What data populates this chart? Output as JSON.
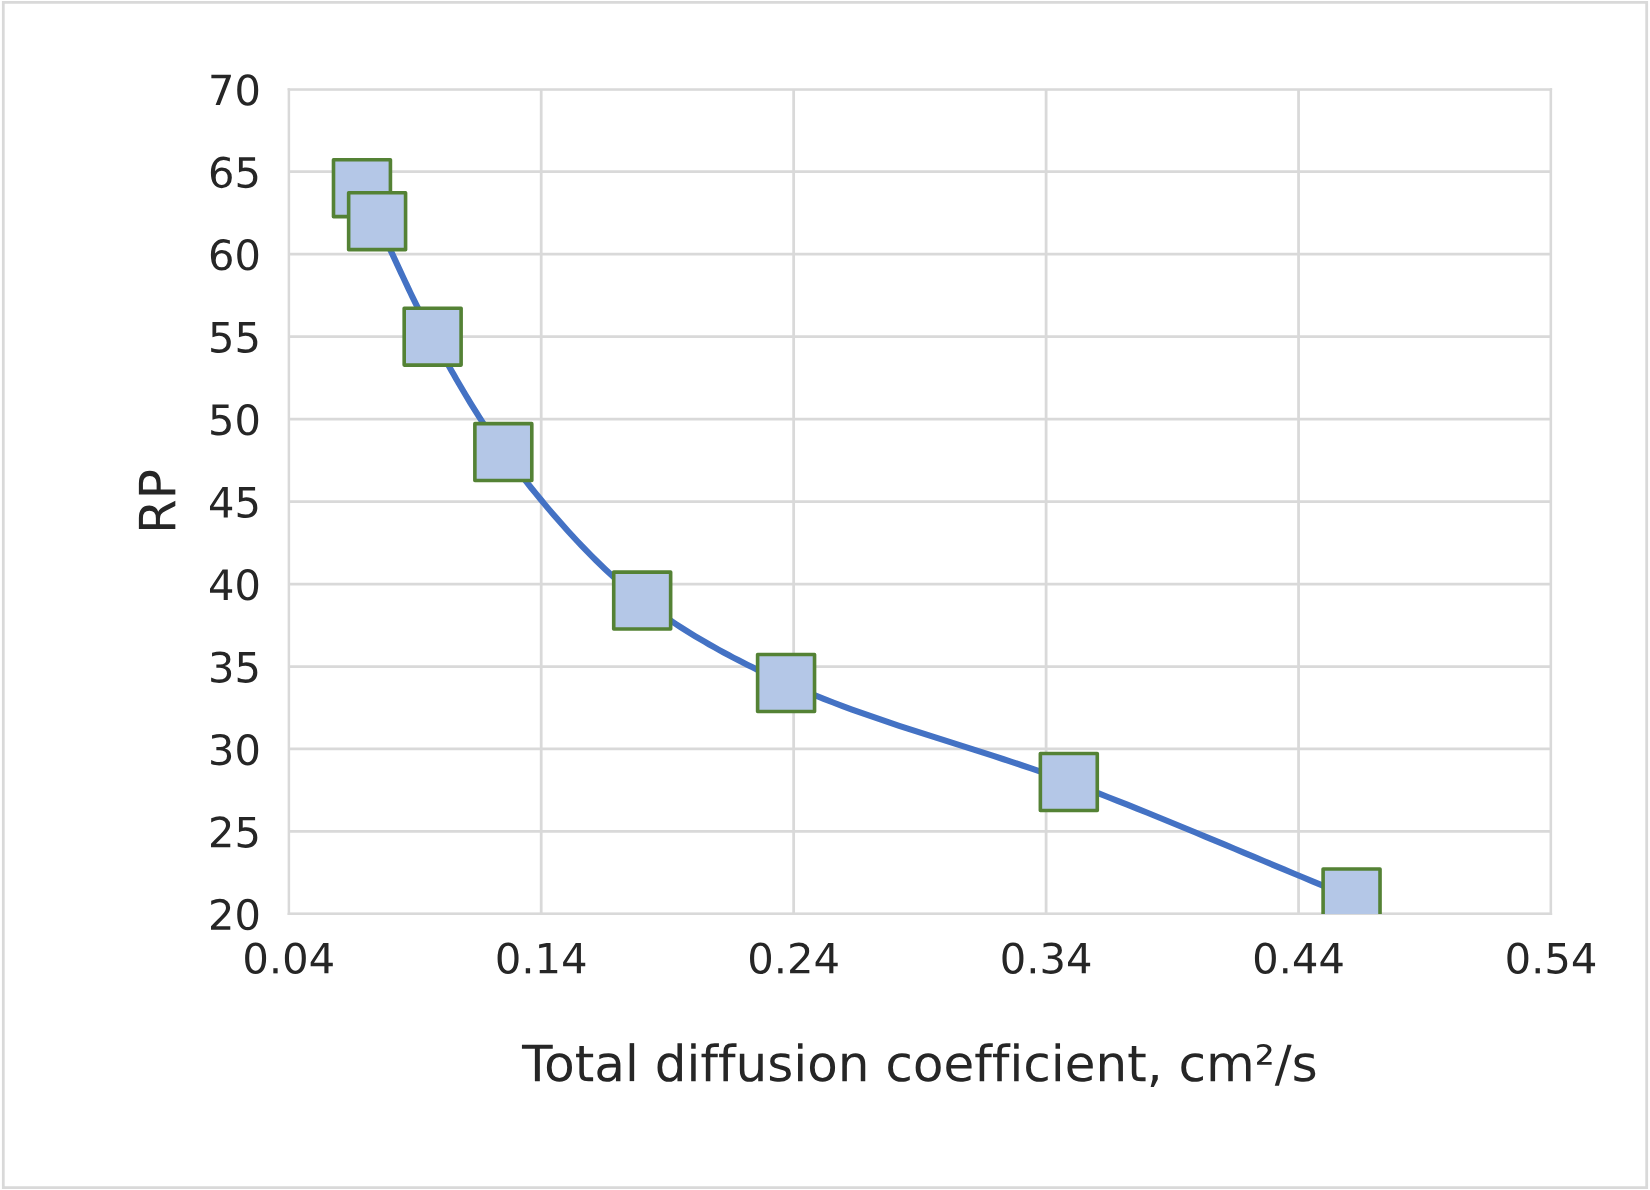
{
  "chart_data": {
    "type": "line",
    "xlabel": "Total diffusion coefficient, cm²/s",
    "ylabel": "RP",
    "x": [
      0.069,
      0.075,
      0.097,
      0.125,
      0.18,
      0.237,
      0.349,
      0.461
    ],
    "series": [
      {
        "color": "#4472c4",
        "values": [
          64,
          62,
          55,
          48,
          39,
          34,
          28,
          21
        ]
      }
    ],
    "marker": "square",
    "line_style": "solid",
    "xlim": [
      0.04,
      0.54
    ],
    "xticks": [
      0.04,
      0.14,
      0.24,
      0.34,
      0.44,
      0.54
    ],
    "ylim": [
      20,
      70
    ],
    "yticks": [
      20,
      25,
      30,
      35,
      40,
      45,
      50,
      55,
      60,
      65,
      70
    ],
    "grid": true,
    "legend": false
  }
}
